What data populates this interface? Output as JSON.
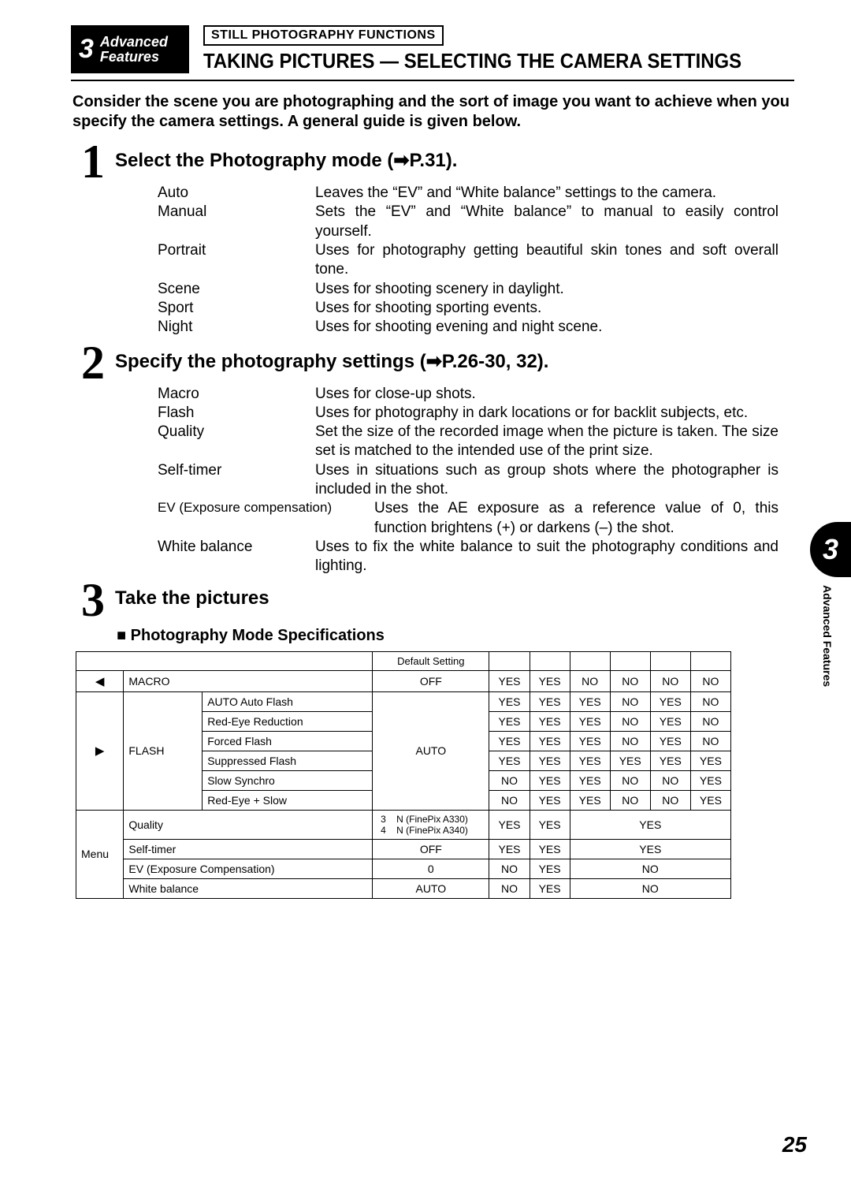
{
  "chapter": {
    "num": "3",
    "line1": "Advanced",
    "line2": "Features"
  },
  "functions_box": "STILL PHOTOGRAPHY FUNCTIONS",
  "main_title": "TAKING PICTURES — SELECTING THE CAMERA SETTINGS",
  "intro": "Consider the scene you are photographing and the sort of image you want to achieve when you specify the camera settings. A general guide is given below.",
  "steps": {
    "s1": {
      "num": "1",
      "title": "Select the Photography mode (➡P.31).",
      "items": [
        {
          "label": "Auto",
          "desc": "Leaves the “EV” and “White balance” settings to the camera."
        },
        {
          "label": "Manual",
          "desc": "Sets the “EV” and “White balance” to manual to easily control yourself."
        },
        {
          "label": "Portrait",
          "desc": "Uses for photography getting beautiful skin tones and soft overall tone."
        },
        {
          "label": "Scene",
          "desc": "Uses for shooting scenery in daylight."
        },
        {
          "label": "Sport",
          "desc": "Uses for shooting sporting events."
        },
        {
          "label": "Night",
          "desc": "Uses for shooting evening and night scene."
        }
      ]
    },
    "s2": {
      "num": "2",
      "title": "Specify the photography settings (➡P.26-30, 32).",
      "items": [
        {
          "label": "Macro",
          "desc": "Uses for close-up shots."
        },
        {
          "label": "Flash",
          "desc": "Uses for photography in dark locations or for backlit subjects, etc."
        },
        {
          "label": "Quality",
          "desc": "Set the size of the recorded image when the picture is taken. The size set is matched to the intended use of the print size."
        },
        {
          "label": "Self-timer",
          "desc": "Uses in situations such as group shots where the photographer is included in the shot."
        },
        {
          "label": "EV (Exposure compensation)",
          "desc": "Uses the AE exposure as a reference value of 0, this function brightens (+) or darkens (–) the shot.",
          "wide": true
        },
        {
          "label": "White balance",
          "desc": "Uses to fix the white balance to suit the photography conditions and lighting."
        }
      ]
    },
    "s3": {
      "num": "3",
      "title": "Take the pictures"
    }
  },
  "subhead": "Photography Mode Specifications",
  "table": {
    "header_default": "Default Setting",
    "rows": {
      "macro": {
        "icon": "◀",
        "cat": "MACRO",
        "def": "OFF",
        "c": [
          "YES",
          "YES",
          "NO",
          "NO",
          "NO",
          "NO"
        ]
      },
      "flash_icon": "▶",
      "flash_cat": "FLASH",
      "flash_def": "AUTO",
      "flash": [
        {
          "name": "AUTO Auto Flash",
          "c": [
            "YES",
            "YES",
            "YES",
            "NO",
            "YES",
            "NO"
          ]
        },
        {
          "name": "Red-Eye Reduction",
          "c": [
            "YES",
            "YES",
            "YES",
            "NO",
            "YES",
            "NO"
          ]
        },
        {
          "name": "Forced Flash",
          "c": [
            "YES",
            "YES",
            "YES",
            "NO",
            "YES",
            "NO"
          ]
        },
        {
          "name": "Suppressed Flash",
          "c": [
            "YES",
            "YES",
            "YES",
            "YES",
            "YES",
            "YES"
          ]
        },
        {
          "name": "Slow Synchro",
          "c": [
            "NO",
            "YES",
            "YES",
            "NO",
            "NO",
            "YES"
          ]
        },
        {
          "name": "Red-Eye + Slow",
          "c": [
            "NO",
            "YES",
            "YES",
            "NO",
            "NO",
            "YES"
          ]
        }
      ],
      "menu_cat": "Menu",
      "quality": {
        "name": "Quality",
        "def": "3    N (FinePix A330)\n4    N (FinePix A340)",
        "c": [
          "YES",
          "YES",
          "YES"
        ]
      },
      "selftimer": {
        "name": "Self-timer",
        "def": "OFF",
        "c": [
          "YES",
          "YES",
          "YES"
        ]
      },
      "ev": {
        "name": "EV (Exposure Compensation)",
        "def": "0",
        "c": [
          "NO",
          "YES",
          "NO"
        ]
      },
      "wb": {
        "name": "White balance",
        "def": "AUTO",
        "c": [
          "NO",
          "YES",
          "NO"
        ]
      }
    }
  },
  "side": {
    "num": "3",
    "label": "Advanced Features"
  },
  "page_num": "25"
}
